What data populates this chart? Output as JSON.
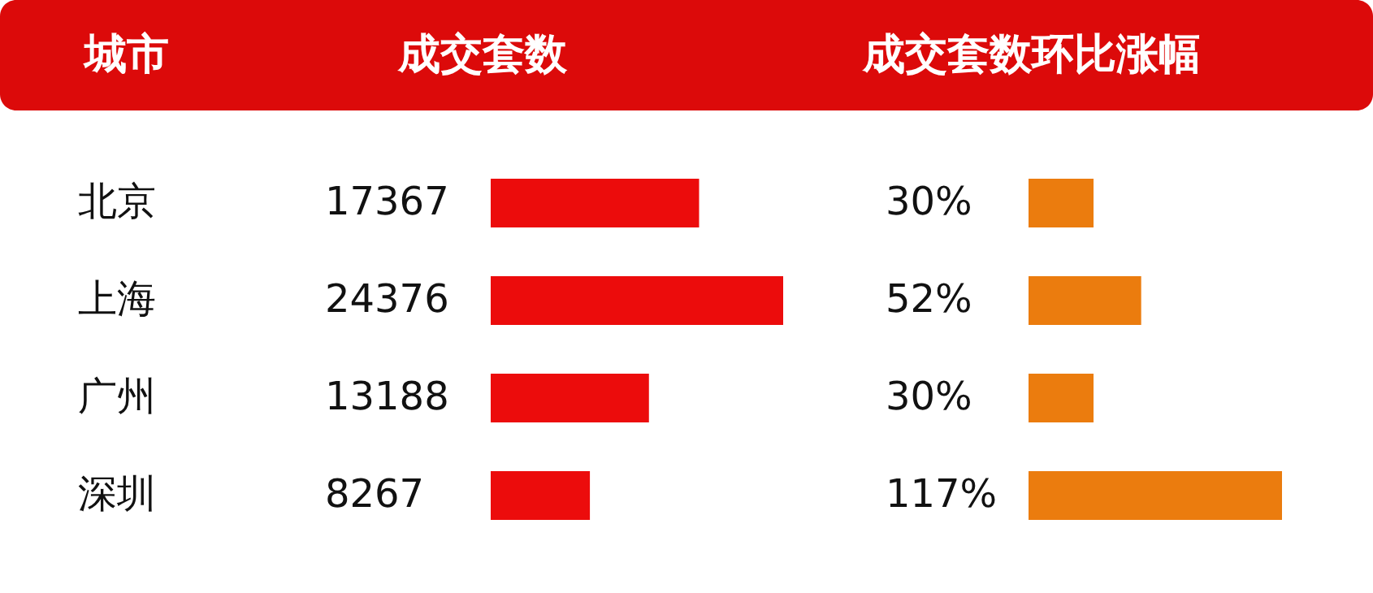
{
  "chart_data": [
    {
      "type": "bar",
      "orientation": "horizontal",
      "title": "成交套数",
      "ylabel": "城市",
      "categories": [
        "北京",
        "上海",
        "广州",
        "深圳"
      ],
      "values": [
        17367,
        24376,
        13188,
        8267
      ],
      "color": "#ec0c0c",
      "data_labels": true,
      "tick_labels": "y"
    },
    {
      "type": "bar",
      "orientation": "horizontal",
      "title": "成交套数环比涨幅",
      "values": [
        30,
        52,
        30,
        117
      ],
      "value_labels": [
        "30%",
        "52%",
        "30%",
        "117%"
      ],
      "color": "#eb7c0e",
      "tick_labels": false
    }
  ]
}
